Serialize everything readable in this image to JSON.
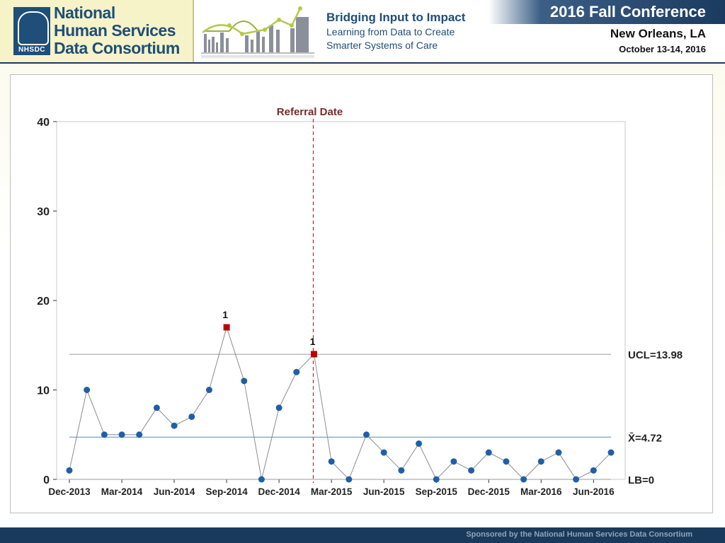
{
  "header": {
    "logo_lines": [
      "National",
      "Human Services",
      "Data Consortium"
    ],
    "logo_abbr": "NHSDC",
    "tagline_title": "Bridging Input to Impact",
    "tagline_sub1": "Learning from Data to Create",
    "tagline_sub2": "Smarter Systems of Care",
    "conference": "2016 Fall Conference",
    "city": "New Orleans, LA",
    "dates": "October 13-14, 2016"
  },
  "footer": {
    "text": "Sponsored by the National Human Services Data Consortium"
  },
  "colors": {
    "brand_navy": "#1f4e79",
    "point_blue": "#1f5fa8",
    "flag_red": "#c00000",
    "referral_line": "#a83232",
    "limit_line": "#9a9a9a",
    "center_line": "#5a8ab0"
  },
  "chart_data": {
    "type": "line",
    "title": "",
    "xlabel": "",
    "ylabel": "",
    "ylim": [
      0,
      40
    ],
    "yticks": [
      0,
      10,
      20,
      30,
      40
    ],
    "x_tick_labels": [
      "Dec-2013",
      "Mar-2014",
      "Jun-2014",
      "Sep-2014",
      "Dec-2014",
      "Mar-2015",
      "Jun-2015",
      "Sep-2015",
      "Dec-2015",
      "Mar-2016",
      "Jun-2016"
    ],
    "x_tick_index": [
      0,
      3,
      6,
      9,
      12,
      15,
      18,
      21,
      24,
      27,
      30
    ],
    "values": [
      1,
      10,
      5,
      5,
      5,
      8,
      6,
      7,
      10,
      17,
      11,
      0,
      8,
      12,
      14,
      2,
      0,
      5,
      3,
      1,
      4,
      0,
      2,
      1,
      3,
      2,
      0,
      2,
      3,
      0,
      1,
      3
    ],
    "flagged_points": [
      9,
      14
    ],
    "flag_label": "1",
    "control_limits": [
      {
        "name": "UCL",
        "label": "UCL=13.98",
        "value": 13.98
      },
      {
        "name": "mean",
        "label": "X̄=4.72",
        "value": 4.72
      },
      {
        "name": "LB",
        "label": "LB=0",
        "value": 0
      }
    ],
    "annotation": {
      "label": "Referral Date",
      "x_index": 14
    },
    "grid": false,
    "legend": "none"
  }
}
